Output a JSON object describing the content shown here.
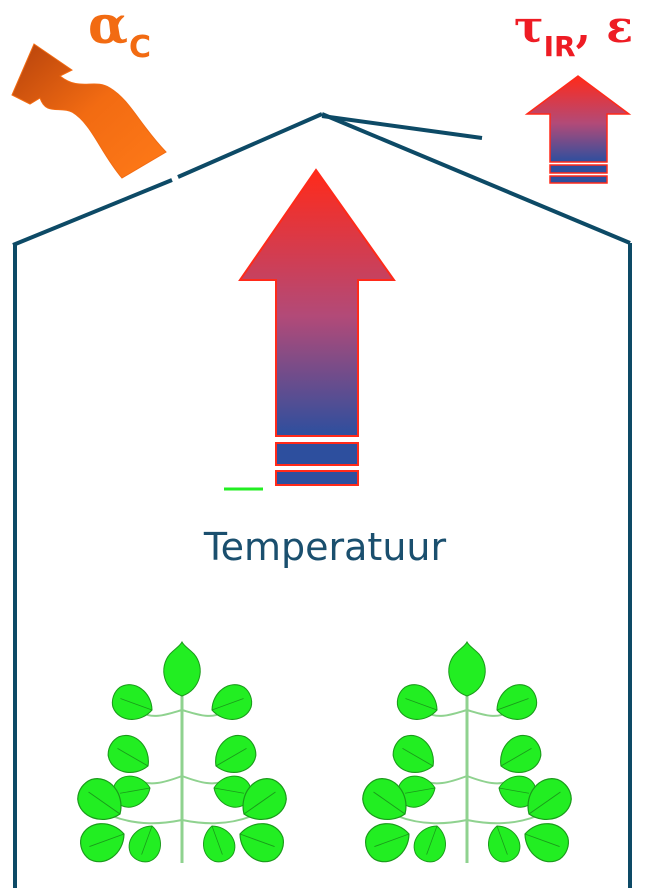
{
  "labels": {
    "convection_symbol": "α",
    "convection_subscript": "C",
    "radiation_symbol": "τ",
    "radiation_subscript": "IR",
    "emissivity_symbol": ", ε",
    "temperature": "Temperatuur"
  },
  "colors": {
    "greenhouse_outline": "#0d4a66",
    "arrow_red": "#ff2a1a",
    "arrow_blue": "#2d4f9e",
    "arrow_orange": "#f26b12",
    "leaf_green": "#22ee22",
    "text_blue": "#1a4f6e"
  },
  "icons": [
    "convection-wave-arrow-icon",
    "ir-radiation-arrow-icon",
    "heat-upward-arrow-icon",
    "plant-icon"
  ]
}
